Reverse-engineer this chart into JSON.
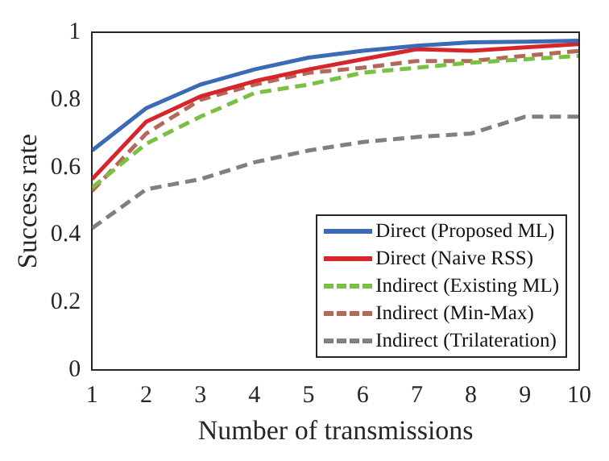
{
  "chart_data": {
    "type": "line",
    "xlabel": "Number of transmissions",
    "ylabel": "Success rate",
    "x": [
      1,
      2,
      3,
      4,
      5,
      6,
      7,
      8,
      9,
      10
    ],
    "xlim": [
      1,
      10
    ],
    "xticks": [
      1,
      2,
      3,
      4,
      5,
      6,
      7,
      8,
      9,
      10
    ],
    "ylim": [
      0,
      1
    ],
    "yticks": [
      0,
      0.2,
      0.4,
      0.6,
      0.8,
      1
    ],
    "legend": "bottom right",
    "marker": "none",
    "series": [
      {
        "name": "Direct (Proposed ML)",
        "color": "#3b6bb5",
        "line_style": "solid",
        "values": [
          0.65,
          0.775,
          0.845,
          0.89,
          0.925,
          0.945,
          0.96,
          0.97,
          0.972,
          0.975
        ]
      },
      {
        "name": "Direct (Naive RSS)",
        "color": "#d7262b",
        "line_style": "solid",
        "values": [
          0.565,
          0.735,
          0.81,
          0.855,
          0.89,
          0.92,
          0.95,
          0.945,
          0.955,
          0.965
        ]
      },
      {
        "name": "Indirect (Existing ML)",
        "color": "#7ac143",
        "line_style": "dashed",
        "values": [
          0.54,
          0.67,
          0.75,
          0.82,
          0.845,
          0.88,
          0.895,
          0.91,
          0.92,
          0.93
        ]
      },
      {
        "name": "Indirect (Min-Max)",
        "color": "#b5675a",
        "line_style": "dashed",
        "values": [
          0.53,
          0.7,
          0.8,
          0.845,
          0.88,
          0.895,
          0.915,
          0.915,
          0.93,
          0.945
        ]
      },
      {
        "name": "Indirect (Trilateration)",
        "color": "#808080",
        "line_style": "dashed",
        "values": [
          0.42,
          0.535,
          0.565,
          0.615,
          0.65,
          0.675,
          0.69,
          0.7,
          0.75,
          0.75
        ]
      }
    ]
  }
}
